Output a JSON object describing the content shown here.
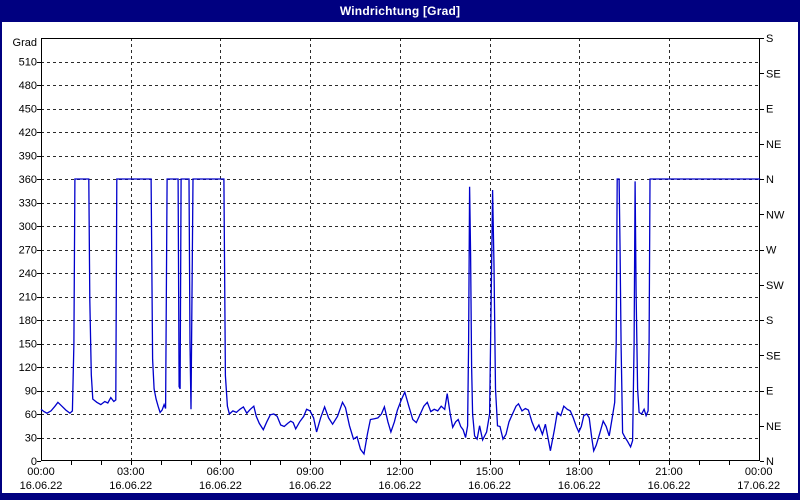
{
  "window": {
    "title": "Windrichtung [Grad]"
  },
  "colors": {
    "titlebar_bg": "#000080",
    "window_border": "#000080",
    "plot_bg": "#ffffff",
    "axis": "#000000",
    "grid": "#2b2b2b",
    "line": "#0000cc",
    "text": "#000000",
    "title_text": "#ffffff"
  },
  "chart_data": {
    "type": "line",
    "title": "Windrichtung [Grad]",
    "y_left_title": "Grad",
    "ylim": [
      0,
      540
    ],
    "y_left_tick_step": 30,
    "y_left_ticks": [
      0,
      30,
      60,
      90,
      120,
      150,
      180,
      210,
      240,
      270,
      300,
      330,
      360,
      390,
      420,
      450,
      480,
      510
    ],
    "y_right_ticks": [
      {
        "deg": 0,
        "label": "N"
      },
      {
        "deg": 45,
        "label": "NE"
      },
      {
        "deg": 90,
        "label": "E"
      },
      {
        "deg": 135,
        "label": "SE"
      },
      {
        "deg": 180,
        "label": "S"
      },
      {
        "deg": 225,
        "label": "SW"
      },
      {
        "deg": 270,
        "label": "W"
      },
      {
        "deg": 315,
        "label": "NW"
      },
      {
        "deg": 360,
        "label": "N"
      },
      {
        "deg": 405,
        "label": "NE"
      },
      {
        "deg": 450,
        "label": "E"
      },
      {
        "deg": 495,
        "label": "SE"
      },
      {
        "deg": 540,
        "label": "S"
      }
    ],
    "xlim_minutes": [
      0,
      1440
    ],
    "x_minor_tick_minutes": 60,
    "x_ticks": [
      {
        "minute": 0,
        "time": "00:00",
        "date": "16.06.22"
      },
      {
        "minute": 180,
        "time": "03:00",
        "date": "16.06.22"
      },
      {
        "minute": 360,
        "time": "06:00",
        "date": "16.06.22"
      },
      {
        "minute": 540,
        "time": "09:00",
        "date": "16.06.22"
      },
      {
        "minute": 720,
        "time": "12:00",
        "date": "16.06.22"
      },
      {
        "minute": 900,
        "time": "15:00",
        "date": "16.06.22"
      },
      {
        "minute": 1080,
        "time": "18:00",
        "date": "16.06.22"
      },
      {
        "minute": 1260,
        "time": "21:00",
        "date": "16.06.22"
      },
      {
        "minute": 1440,
        "time": "00:00",
        "date": "17.06.22"
      }
    ],
    "grid": true,
    "legend": "none",
    "series": [
      {
        "name": "Windrichtung",
        "unit": "Grad",
        "points": [
          [
            0,
            66
          ],
          [
            6,
            63
          ],
          [
            12,
            61
          ],
          [
            20,
            64
          ],
          [
            28,
            70
          ],
          [
            34,
            75
          ],
          [
            42,
            70
          ],
          [
            50,
            65
          ],
          [
            58,
            61
          ],
          [
            63,
            64
          ],
          [
            66,
            150
          ],
          [
            68,
            360
          ],
          [
            96,
            360
          ],
          [
            98,
            206
          ],
          [
            101,
            110
          ],
          [
            104,
            79
          ],
          [
            112,
            75
          ],
          [
            120,
            72
          ],
          [
            128,
            76
          ],
          [
            134,
            74
          ],
          [
            140,
            81
          ],
          [
            146,
            76
          ],
          [
            150,
            78
          ],
          [
            152,
            360
          ],
          [
            221,
            360
          ],
          [
            224,
            130
          ],
          [
            227,
            92
          ],
          [
            231,
            79
          ],
          [
            235,
            70
          ],
          [
            239,
            62
          ],
          [
            243,
            65
          ],
          [
            247,
            72
          ],
          [
            250,
            67
          ],
          [
            253,
            360
          ],
          [
            275,
            360
          ],
          [
            277,
            95
          ],
          [
            279,
            92
          ],
          [
            281,
            360
          ],
          [
            297,
            360
          ],
          [
            299,
            150
          ],
          [
            301,
            66
          ],
          [
            305,
            360
          ],
          [
            367,
            360
          ],
          [
            370,
            109
          ],
          [
            374,
            70
          ],
          [
            378,
            60
          ],
          [
            385,
            64
          ],
          [
            392,
            62
          ],
          [
            399,
            66
          ],
          [
            406,
            69
          ],
          [
            413,
            61
          ],
          [
            420,
            66
          ],
          [
            427,
            70
          ],
          [
            432,
            57
          ],
          [
            438,
            48
          ],
          [
            446,
            40
          ],
          [
            453,
            50
          ],
          [
            460,
            59
          ],
          [
            467,
            60
          ],
          [
            474,
            57
          ],
          [
            481,
            46
          ],
          [
            488,
            44
          ],
          [
            495,
            48
          ],
          [
            501,
            51
          ],
          [
            506,
            49
          ],
          [
            511,
            41
          ],
          [
            519,
            50
          ],
          [
            527,
            57
          ],
          [
            533,
            66
          ],
          [
            540,
            64
          ],
          [
            547,
            55
          ],
          [
            553,
            37
          ],
          [
            561,
            55
          ],
          [
            569,
            69
          ],
          [
            577,
            55
          ],
          [
            585,
            47
          ],
          [
            595,
            57
          ],
          [
            605,
            75
          ],
          [
            611,
            68
          ],
          [
            619,
            45
          ],
          [
            627,
            28
          ],
          [
            634,
            31
          ],
          [
            641,
            15
          ],
          [
            648,
            9
          ],
          [
            655,
            35
          ],
          [
            661,
            53
          ],
          [
            669,
            54
          ],
          [
            676,
            55
          ],
          [
            683,
            60
          ],
          [
            689,
            69
          ],
          [
            696,
            50
          ],
          [
            702,
            37
          ],
          [
            709,
            50
          ],
          [
            715,
            65
          ],
          [
            723,
            78
          ],
          [
            730,
            88
          ],
          [
            738,
            70
          ],
          [
            746,
            53
          ],
          [
            753,
            49
          ],
          [
            761,
            60
          ],
          [
            768,
            70
          ],
          [
            775,
            75
          ],
          [
            782,
            63
          ],
          [
            789,
            66
          ],
          [
            796,
            64
          ],
          [
            803,
            70
          ],
          [
            810,
            66
          ],
          [
            815,
            86
          ],
          [
            821,
            60
          ],
          [
            826,
            43
          ],
          [
            832,
            50
          ],
          [
            837,
            53
          ],
          [
            842,
            44
          ],
          [
            847,
            40
          ],
          [
            852,
            30
          ],
          [
            856,
            45
          ],
          [
            858,
            150
          ],
          [
            860,
            350
          ],
          [
            862,
            264
          ],
          [
            864,
            121
          ],
          [
            866,
            60
          ],
          [
            870,
            32
          ],
          [
            875,
            28
          ],
          [
            880,
            45
          ],
          [
            886,
            27
          ],
          [
            894,
            37
          ],
          [
            900,
            60
          ],
          [
            903,
            200
          ],
          [
            906,
            346
          ],
          [
            909,
            249
          ],
          [
            912,
            92
          ],
          [
            916,
            45
          ],
          [
            921,
            44
          ],
          [
            927,
            28
          ],
          [
            933,
            34
          ],
          [
            939,
            50
          ],
          [
            946,
            60
          ],
          [
            953,
            70
          ],
          [
            958,
            73
          ],
          [
            965,
            64
          ],
          [
            972,
            67
          ],
          [
            978,
            65
          ],
          [
            985,
            50
          ],
          [
            992,
            39
          ],
          [
            999,
            46
          ],
          [
            1006,
            34
          ],
          [
            1012,
            47
          ],
          [
            1017,
            30
          ],
          [
            1022,
            13
          ],
          [
            1030,
            40
          ],
          [
            1036,
            62
          ],
          [
            1043,
            58
          ],
          [
            1049,
            70
          ],
          [
            1056,
            66
          ],
          [
            1062,
            64
          ],
          [
            1068,
            55
          ],
          [
            1074,
            44
          ],
          [
            1079,
            37
          ],
          [
            1084,
            44
          ],
          [
            1089,
            58
          ],
          [
            1095,
            60
          ],
          [
            1100,
            55
          ],
          [
            1105,
            30
          ],
          [
            1109,
            13
          ],
          [
            1114,
            20
          ],
          [
            1121,
            35
          ],
          [
            1128,
            51
          ],
          [
            1134,
            44
          ],
          [
            1140,
            32
          ],
          [
            1146,
            55
          ],
          [
            1151,
            75
          ],
          [
            1154,
            150
          ],
          [
            1156,
            360
          ],
          [
            1160,
            360
          ],
          [
            1162,
            266
          ],
          [
            1164,
            147
          ],
          [
            1167,
            36
          ],
          [
            1172,
            30
          ],
          [
            1177,
            25
          ],
          [
            1183,
            18
          ],
          [
            1187,
            26
          ],
          [
            1190,
            150
          ],
          [
            1192,
            357
          ],
          [
            1194,
            215
          ],
          [
            1197,
            92
          ],
          [
            1200,
            62
          ],
          [
            1205,
            60
          ],
          [
            1210,
            66
          ],
          [
            1214,
            58
          ],
          [
            1218,
            64
          ],
          [
            1220,
            151
          ],
          [
            1222,
            360
          ],
          [
            1443,
            360
          ]
        ]
      }
    ]
  }
}
